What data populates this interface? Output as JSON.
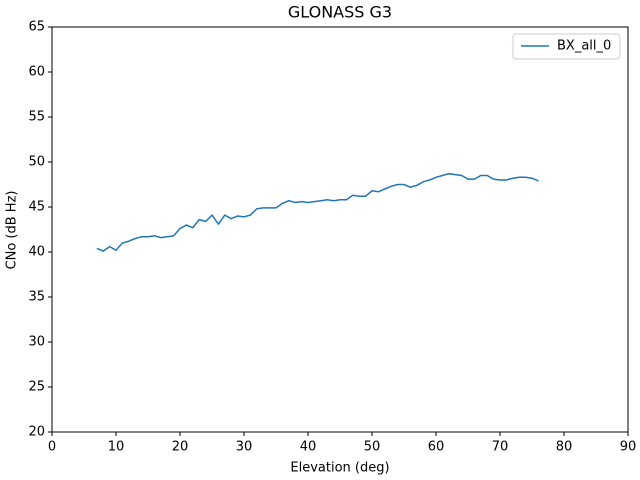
{
  "chart_data": {
    "type": "line",
    "title": "GLONASS G3",
    "x_label": "Elevation (deg)",
    "y_label": "CNo (dB Hz)",
    "x": [
      7,
      8,
      9,
      10,
      11,
      12,
      13,
      14,
      15,
      16,
      17,
      18,
      19,
      20,
      21,
      22,
      23,
      24,
      25,
      26,
      27,
      28,
      29,
      30,
      31,
      32,
      33,
      34,
      35,
      36,
      37,
      38,
      39,
      40,
      41,
      42,
      43,
      44,
      45,
      46,
      47,
      48,
      49,
      50,
      51,
      52,
      53,
      54,
      55,
      56,
      57,
      58,
      59,
      60,
      61,
      62,
      63,
      64,
      65,
      66,
      67,
      68,
      69,
      70,
      71,
      72,
      73,
      74,
      75,
      76
    ],
    "series": [
      {
        "name": "BX_all_0",
        "color": "#1f77b4",
        "values": [
          40.4,
          40.1,
          40.6,
          40.2,
          41.0,
          41.2,
          41.5,
          41.7,
          41.7,
          41.8,
          41.6,
          41.7,
          41.8,
          42.6,
          43.0,
          42.7,
          43.6,
          43.4,
          44.1,
          43.1,
          44.1,
          43.7,
          44.0,
          43.9,
          44.1,
          44.8,
          44.9,
          44.9,
          44.9,
          45.4,
          45.7,
          45.5,
          45.6,
          45.5,
          45.6,
          45.7,
          45.8,
          45.7,
          45.8,
          45.8,
          46.3,
          46.2,
          46.2,
          46.8,
          46.7,
          47.0,
          47.3,
          47.5,
          47.5,
          47.2,
          47.4,
          47.8,
          48.0,
          48.3,
          48.5,
          48.7,
          48.6,
          48.5,
          48.1,
          48.1,
          48.5,
          48.5,
          48.1,
          48.0,
          48.0,
          48.2,
          48.3,
          48.3,
          48.2,
          47.9
        ]
      }
    ],
    "xlim": [
      0,
      90
    ],
    "xticks": [
      0,
      10,
      20,
      30,
      40,
      50,
      60,
      70,
      80,
      90
    ],
    "ylim": [
      20,
      65
    ],
    "yticks": [
      20,
      25,
      30,
      35,
      40,
      45,
      50,
      55,
      60,
      65
    ],
    "legend": "upper right",
    "grid": false
  }
}
